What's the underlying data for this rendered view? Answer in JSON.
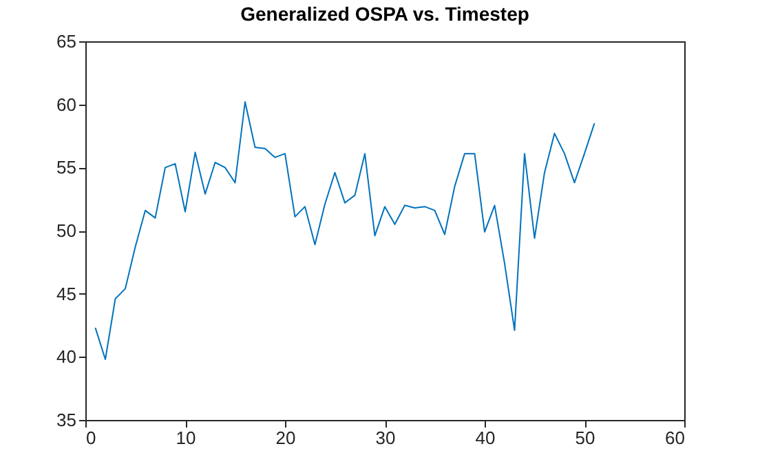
{
  "chart_data": {
    "type": "line",
    "title": "Generalized OSPA vs. Timestep",
    "x": [
      1,
      2,
      3,
      4,
      5,
      6,
      7,
      8,
      9,
      10,
      11,
      12,
      13,
      14,
      15,
      16,
      17,
      18,
      19,
      20,
      21,
      22,
      23,
      24,
      25,
      26,
      27,
      28,
      29,
      30,
      31,
      32,
      33,
      34,
      35,
      36,
      37,
      38,
      39,
      40,
      41,
      42,
      43,
      44,
      45,
      46,
      47,
      48,
      49,
      50,
      51
    ],
    "series": [
      {
        "color": "#0072bd",
        "values": [
          42.3,
          39.8,
          44.6,
          45.4,
          48.7,
          51.6,
          51.0,
          55.0,
          55.3,
          51.5,
          56.2,
          52.9,
          55.4,
          55.0,
          53.8,
          60.2,
          56.6,
          56.5,
          55.8,
          56.1,
          51.1,
          51.9,
          48.9,
          52.1,
          54.6,
          52.2,
          52.8,
          56.1,
          49.6,
          51.9,
          50.5,
          52.0,
          51.8,
          51.9,
          51.6,
          49.7,
          53.5,
          56.1,
          56.1,
          49.9,
          52.0,
          47.4,
          42.1,
          56.1,
          49.4,
          54.6,
          57.7,
          56.1,
          53.8,
          56.1,
          58.5
        ]
      }
    ],
    "xlim": [
      0,
      60
    ],
    "xticks": [
      0,
      10,
      20,
      30,
      40,
      50,
      60
    ],
    "ylim": [
      35,
      65
    ],
    "yticks": [
      35,
      40,
      45,
      50,
      55,
      60,
      65
    ]
  }
}
